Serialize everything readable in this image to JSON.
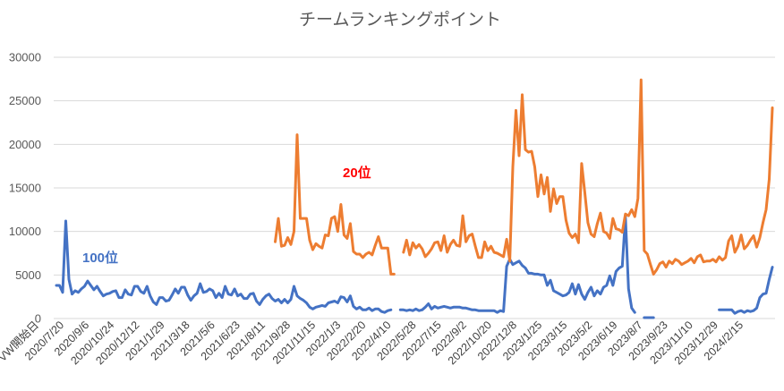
{
  "chart_data": {
    "type": "line",
    "title": "チームランキングポイント",
    "xlabel": "",
    "ylabel": "",
    "ylim": [
      0,
      30000
    ],
    "yticks": [
      "0",
      "5000",
      "10000",
      "15000",
      "20000",
      "25000",
      "30000"
    ],
    "grid": true,
    "x_tick_labels": [
      "VW開始日",
      "2020/7/20",
      "2020/9/6",
      "2020/10/24",
      "2020/12/12",
      "2021/1/29",
      "2021/3/18",
      "2021/5/6",
      "2021/6/23",
      "2021/8/11",
      "2021/9/28",
      "2021/11/15",
      "2022/1/3",
      "2022/2/20",
      "2022/4/10",
      "2022/5/28",
      "2022/7/15",
      "2022/9/2",
      "2022/10/20",
      "2022/12/8",
      "2023/1/25",
      "2023/3/15",
      "2023/5/2",
      "2023/6/19",
      "2023/8/7",
      "2023/9/23",
      "2023/11/10",
      "2023/12/29",
      "2024/2/15"
    ],
    "annotations": [
      {
        "text": "20位",
        "color": "#ff0000",
        "series": "20位"
      },
      {
        "text": "100位",
        "color": "#4472c4",
        "series": "100位"
      }
    ],
    "series": [
      {
        "name": "100位",
        "color": "#4472c4",
        "values": [
          3800,
          3800,
          3000,
          11200,
          4500,
          2800,
          3200,
          3000,
          3400,
          3700,
          4300,
          3800,
          3300,
          3700,
          3100,
          2600,
          2800,
          2900,
          3100,
          3200,
          2400,
          2400,
          3300,
          2800,
          2700,
          3700,
          3700,
          3100,
          2900,
          3700,
          2600,
          1900,
          1600,
          2400,
          2400,
          2000,
          2100,
          2700,
          3400,
          2900,
          3600,
          3600,
          2700,
          2100,
          2600,
          2900,
          4000,
          3000,
          3100,
          3400,
          3200,
          2400,
          2900,
          2400,
          3700,
          2800,
          2700,
          3400,
          2600,
          2800,
          2300,
          2300,
          2800,
          2900,
          2000,
          1600,
          2200,
          2600,
          2800,
          2300,
          2000,
          2200,
          1800,
          2200,
          1800,
          2200,
          3700,
          2600,
          2300,
          2100,
          1800,
          1300,
          1100,
          1300,
          1400,
          1500,
          1400,
          1800,
          1900,
          2000,
          1800,
          2500,
          2400,
          1900,
          2600,
          1400,
          1100,
          1300,
          1000,
          1000,
          1200,
          900,
          1100,
          1100,
          800,
          700,
          900,
          1000,
          null,
          null,
          1000,
          1000,
          900,
          1000,
          900,
          1100,
          900,
          1000,
          1300,
          1700,
          1100,
          1400,
          1200,
          1300,
          1400,
          1300,
          1200,
          1300,
          1300,
          1300,
          1200,
          1200,
          1100,
          1000,
          1000,
          900,
          900,
          900,
          900,
          900,
          900,
          700,
          900,
          800,
          6000,
          6800,
          6200,
          6400,
          6600,
          6100,
          5800,
          5200,
          5200,
          5100,
          5100,
          5000,
          5000,
          3800,
          4400,
          3200,
          3000,
          2800,
          2600,
          2700,
          3000,
          4000,
          2800,
          3900,
          2800,
          2200,
          3000,
          3600,
          2600,
          3200,
          2800,
          3600,
          3800,
          4900,
          3800,
          5400,
          5800,
          6000,
          11700,
          3400,
          1200,
          700,
          null,
          null,
          100,
          100,
          100,
          100,
          null,
          null,
          null,
          null,
          null,
          null,
          null,
          null,
          null,
          null,
          null,
          null,
          null,
          null,
          null,
          null,
          null,
          null,
          null,
          null,
          1000,
          1000,
          1000,
          1000,
          1000,
          600,
          800,
          900,
          700,
          900,
          800,
          900,
          1200,
          2400,
          2800,
          2900,
          4500,
          5900
        ]
      },
      {
        "name": "20位",
        "color": "#ed7d31",
        "values": [
          null,
          null,
          null,
          null,
          null,
          null,
          null,
          null,
          null,
          null,
          null,
          null,
          null,
          null,
          null,
          null,
          null,
          null,
          null,
          null,
          null,
          null,
          null,
          null,
          null,
          null,
          null,
          null,
          null,
          null,
          null,
          null,
          null,
          null,
          null,
          null,
          null,
          null,
          null,
          null,
          null,
          null,
          null,
          null,
          null,
          null,
          null,
          null,
          null,
          null,
          null,
          null,
          null,
          null,
          null,
          null,
          null,
          null,
          null,
          null,
          null,
          null,
          null,
          null,
          null,
          null,
          null,
          null,
          null,
          null,
          8800,
          11500,
          8300,
          8400,
          9300,
          8500,
          10000,
          21100,
          11500,
          11500,
          11500,
          9000,
          7900,
          8600,
          8300,
          8100,
          9600,
          9500,
          11500,
          11700,
          10000,
          13100,
          9600,
          9200,
          10900,
          7700,
          7400,
          7400,
          7000,
          7400,
          7600,
          7300,
          8400,
          9400,
          8100,
          8100,
          8100,
          5100,
          5100,
          null,
          null,
          7600,
          9000,
          7300,
          8700,
          8100,
          8500,
          8000,
          7100,
          7500,
          8000,
          8700,
          8800,
          7800,
          9500,
          7600,
          8500,
          9000,
          8400,
          8300,
          11800,
          8800,
          9500,
          9700,
          8300,
          7000,
          7000,
          8800,
          7800,
          8300,
          7600,
          7500,
          7300,
          7100,
          9100,
          6600,
          17400,
          23900,
          18700,
          25700,
          19400,
          19100,
          19200,
          17400,
          14000,
          16500,
          14300,
          16200,
          12300,
          14900,
          13200,
          14000,
          14000,
          11300,
          9800,
          9300,
          9700,
          8700,
          17800,
          14500,
          11000,
          9700,
          9400,
          10900,
          12100,
          10000,
          9800,
          9200,
          11500,
          10300,
          10200,
          9900,
          12000,
          11800,
          12500,
          11700,
          13800,
          27400,
          7800,
          7400,
          6200,
          5100,
          5600,
          6300,
          6500,
          5900,
          6600,
          6300,
          6800,
          6600,
          6200,
          6400,
          6600,
          6900,
          6400,
          7100,
          7300,
          6500,
          6600,
          6600,
          6800,
          6500,
          7100,
          6700,
          7000,
          8900,
          9500,
          7600,
          8300,
          9600,
          8000,
          8400,
          9000,
          9500,
          8200,
          9300,
          11000,
          12500,
          16000,
          24200
        ]
      }
    ]
  }
}
